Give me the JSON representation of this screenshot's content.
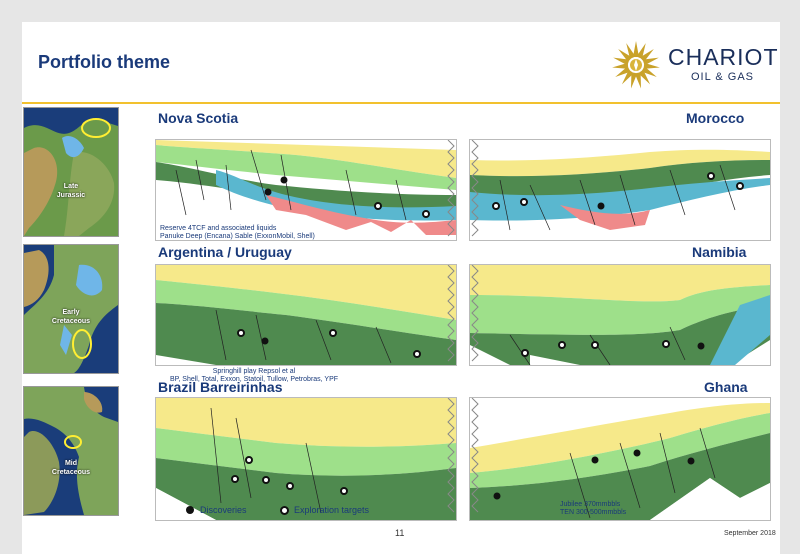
{
  "header": {
    "title": "Portfolio theme"
  },
  "logo": {
    "brand": "CHARIOT",
    "sub": "OIL & GAS"
  },
  "maps": [
    {
      "label": "Late\nJurassic"
    },
    {
      "label": "Early\nCretaceous"
    },
    {
      "label": "Mid\nCretaceous"
    }
  ],
  "rows": [
    {
      "left": "Nova Scotia",
      "right": "Morocco",
      "note_lines": [
        "Reserve 4TCF and associated liquids",
        "Panuke Deep (Encana) Sable (ExxonMobil, Shell)"
      ]
    },
    {
      "left": "Argentina / Uruguay",
      "right": "Namibia",
      "note_lines": [
        "Springhill play Repsol et al",
        "BP, Shell,  Total, Exxon, Statoil, Tullow, Petrobras, YPF"
      ]
    },
    {
      "left": "Brazil Barreirinhas",
      "right": "Ghana",
      "note_lines": [
        "Jubilee 370mmbbls",
        "TEN  300-500mmbbls"
      ]
    }
  ],
  "legend": {
    "discoveries": "Discoveries",
    "exploration": "Exploration targets"
  },
  "footer": {
    "page": "11",
    "date": "September 2018"
  },
  "colors": {
    "navy": "#1a3a7a",
    "gold": "#f2c12e",
    "yellow_layer": "#f6e98a",
    "green_light": "#9ee08a",
    "green_dark": "#4f8a4f",
    "blue": "#5ab7cf",
    "pink": "#ef8a8a"
  }
}
